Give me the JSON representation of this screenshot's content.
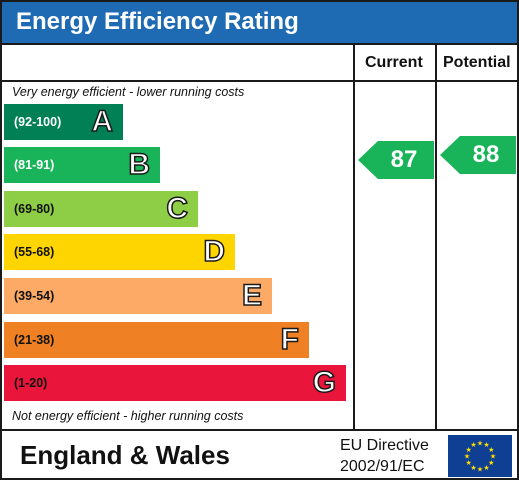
{
  "title": "Energy Efficiency Rating",
  "headers": {
    "current": "Current",
    "potential": "Potential"
  },
  "notes": {
    "top": "Very energy efficient - lower running costs",
    "bottom": "Not energy efficient - higher running costs"
  },
  "bands": [
    {
      "range": "(92-100)",
      "letter": "A",
      "color": "#008054"
    },
    {
      "range": "(81-91)",
      "letter": "B",
      "color": "#19b459"
    },
    {
      "range": "(69-80)",
      "letter": "C",
      "color": "#8dce46"
    },
    {
      "range": "(55-68)",
      "letter": "D",
      "color": "#ffd500"
    },
    {
      "range": "(39-54)",
      "letter": "E",
      "color": "#fcaa65"
    },
    {
      "range": "(21-38)",
      "letter": "F",
      "color": "#ef8023"
    },
    {
      "range": "(1-20)",
      "letter": "G",
      "color": "#e9153b"
    }
  ],
  "ratings": {
    "current": {
      "value": "87",
      "color": "#19b459"
    },
    "potential": {
      "value": "88",
      "color": "#19b459"
    }
  },
  "footer": {
    "region": "England & Wales",
    "directive_line1": "EU Directive",
    "directive_line2": "2002/91/EC"
  },
  "flag": {
    "background": "#0f3f93",
    "star_color": "#ffdd00"
  }
}
